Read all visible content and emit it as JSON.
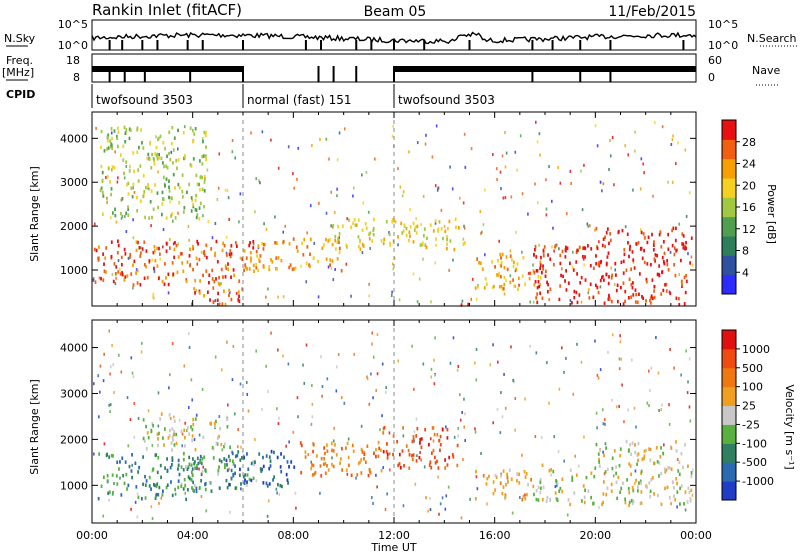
{
  "header": {
    "station": "Rankin Inlet (fitACF)",
    "beam": "Beam 05",
    "date": "11/Feb/2015"
  },
  "noise_panel": {
    "left_label": "N.Sky",
    "right_label": "N.Search",
    "left_ticks": [
      "10^5",
      "10^0"
    ],
    "right_ticks": [
      "10^5",
      "10^0"
    ]
  },
  "freq_panel": {
    "left_label_line1": "Freq.",
    "left_label_line2": "[MHz]",
    "left_ticks": [
      "18",
      "8"
    ],
    "right_label": "Nave",
    "right_ticks": [
      "60",
      "0"
    ]
  },
  "cpid": {
    "label": "CPID",
    "segments": [
      {
        "name": "twofsound 3503",
        "start_h": 0,
        "end_h": 6
      },
      {
        "name": "normal (fast) 151",
        "start_h": 6,
        "end_h": 12
      },
      {
        "name": "twofsound 3503",
        "start_h": 12,
        "end_h": 24
      }
    ]
  },
  "colors": {
    "power": [
      "#2c2cff",
      "#2f4fa0",
      "#2e7d5b",
      "#4f9f4f",
      "#a0c840",
      "#f5d020",
      "#f5a000",
      "#f06010",
      "#e81010"
    ],
    "velocity": [
      "#1e3cc8",
      "#2a6ab0",
      "#2e8060",
      "#58b040",
      "#c8c8c8",
      "#f0a020",
      "#f07810",
      "#f04a10",
      "#e01010"
    ]
  },
  "chart_data": [
    {
      "type": "heatmap",
      "title": "Power",
      "xlabel": "",
      "ylabel": "Slant Range [km]",
      "xlim": [
        0,
        24
      ],
      "ylim": [
        180,
        4600
      ],
      "y_ticks": [
        "1000",
        "2000",
        "3000",
        "4000"
      ],
      "y_tick_values": [
        1000,
        2000,
        3000,
        4000
      ],
      "colorbar_label": "Power [dB]",
      "colorbar_ticks": [
        "4",
        "8",
        "12",
        "16",
        "20",
        "24",
        "28"
      ],
      "colorbar_range": [
        0,
        32
      ],
      "regions": [
        {
          "t0": 0.0,
          "t1": 6.5,
          "r0": 700,
          "r1": 1700,
          "level": 7
        },
        {
          "t0": 3.5,
          "t1": 6.0,
          "r0": 250,
          "r1": 650,
          "level": 7
        },
        {
          "t0": 6.2,
          "t1": 10.0,
          "r0": 1000,
          "r1": 1750,
          "level": 6
        },
        {
          "t0": 9.5,
          "t1": 14.8,
          "r0": 1500,
          "r1": 2200,
          "level": 5
        },
        {
          "t0": 14.2,
          "t1": 15.0,
          "r0": 200,
          "r1": 300,
          "level": 8
        },
        {
          "t0": 15.2,
          "t1": 17.8,
          "r0": 600,
          "r1": 1400,
          "level": 6
        },
        {
          "t0": 17.5,
          "t1": 23.8,
          "r0": 250,
          "r1": 1600,
          "level": 8
        },
        {
          "t0": 20.0,
          "t1": 23.8,
          "r0": 1500,
          "r1": 2000,
          "level": 8
        },
        {
          "t0": 0.3,
          "t1": 4.5,
          "r0": 2200,
          "r1": 4300,
          "level": 4
        }
      ]
    },
    {
      "type": "heatmap",
      "title": "Velocity",
      "xlabel": "Time UT",
      "ylabel": "Slant Range [km]",
      "xlim": [
        0,
        24
      ],
      "ylim": [
        180,
        4600
      ],
      "x_ticks": [
        "00:00",
        "04:00",
        "08:00",
        "12:00",
        "16:00",
        "20:00",
        "00:00"
      ],
      "x_tick_values": [
        0,
        4,
        8,
        12,
        16,
        20,
        24
      ],
      "y_ticks": [
        "1000",
        "2000",
        "3000",
        "4000"
      ],
      "y_tick_values": [
        1000,
        2000,
        3000,
        4000
      ],
      "colorbar_label": "Velocity [m s⁻¹]",
      "colorbar_ticks": [
        "1000",
        "500",
        "100",
        "25",
        "-25",
        "-100",
        "-500",
        "-1000"
      ],
      "regions": [
        {
          "t0": 0.0,
          "t1": 4.5,
          "r0": 700,
          "r1": 1750,
          "level": 2
        },
        {
          "t0": 3.5,
          "t1": 6.5,
          "r0": 900,
          "r1": 1700,
          "level": 3
        },
        {
          "t0": 5.0,
          "t1": 8.0,
          "r0": 1000,
          "r1": 1800,
          "level": 1
        },
        {
          "t0": 8.0,
          "t1": 11.5,
          "r0": 1200,
          "r1": 2000,
          "level": 6
        },
        {
          "t0": 11.5,
          "t1": 14.5,
          "r0": 1400,
          "r1": 2300,
          "level": 7
        },
        {
          "t0": 2.0,
          "t1": 5.5,
          "r0": 1800,
          "r1": 2600,
          "level": 4
        },
        {
          "t0": 15.2,
          "t1": 17.5,
          "r0": 700,
          "r1": 1400,
          "level": 5
        },
        {
          "t0": 17.5,
          "t1": 23.8,
          "r0": 600,
          "r1": 1500,
          "level": 4
        },
        {
          "t0": 20.0,
          "t1": 23.8,
          "r0": 1500,
          "r1": 2000,
          "level": 4
        }
      ]
    }
  ]
}
